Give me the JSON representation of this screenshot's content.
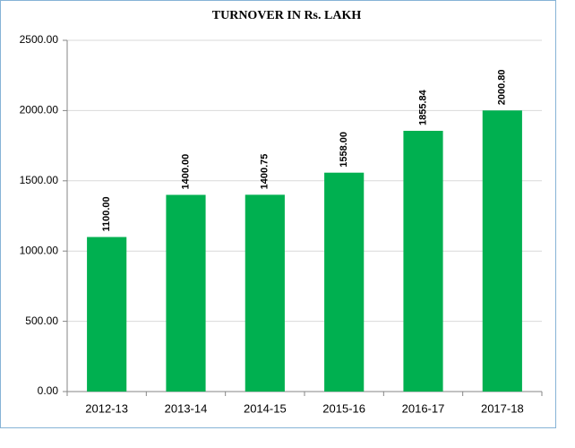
{
  "chart_data": {
    "type": "bar",
    "title": "TURNOVER  IN Rs. LAKH",
    "categories": [
      "2012-13",
      "2013-14",
      "2014-15",
      "2015-16",
      "2016-17",
      "2017-18"
    ],
    "values": [
      1100,
      1400,
      1400.75,
      1558,
      1855.84,
      2000.8
    ],
    "value_labels": [
      "1100.00",
      "1400.00",
      "1400.75",
      "1558.00",
      "1855.84",
      "2000.80"
    ],
    "color": "#00b050",
    "ylim": [
      0,
      2500
    ],
    "yticks": [
      {
        "value": 0,
        "label": "0.00"
      },
      {
        "value": 500,
        "label": "500.00"
      },
      {
        "value": 1000,
        "label": "1000.00"
      },
      {
        "value": 1500,
        "label": "1500.00"
      },
      {
        "value": 2000,
        "label": "2000.00"
      },
      {
        "value": 2500,
        "label": "2500.00"
      }
    ],
    "grid": true
  }
}
